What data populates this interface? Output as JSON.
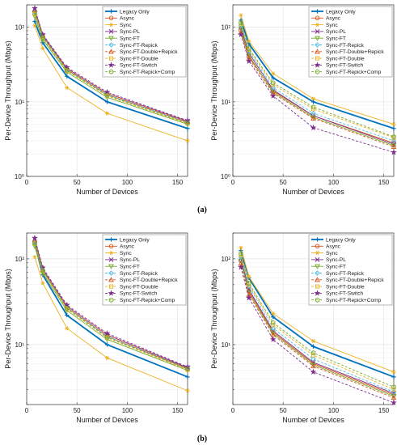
{
  "figure": {
    "captions": [
      "(a)",
      "(b)"
    ]
  },
  "series_styles": [
    {
      "name": "Legacy Only",
      "color": "#0072BD",
      "marker": "plus",
      "dash": "",
      "width": 1.8
    },
    {
      "name": "Async",
      "color": "#D95319",
      "marker": "circle",
      "dash": "",
      "width": 0.9
    },
    {
      "name": "Sync",
      "color": "#EDB120",
      "marker": "star6",
      "dash": "",
      "width": 0.9
    },
    {
      "name": "Sync-PL",
      "color": "#7E2F8E",
      "marker": "x",
      "dash": "",
      "width": 0.9
    },
    {
      "name": "Sync-FT",
      "color": "#77AC30",
      "marker": "tri-down",
      "dash": "",
      "width": 0.9
    },
    {
      "name": "Sync-FT-Repick",
      "color": "#4DBEEE",
      "marker": "diamond",
      "dash": "3,2",
      "width": 0.9
    },
    {
      "name": "Sync-FT-Double+Repick",
      "color": "#D95319",
      "marker": "tri-up",
      "dash": "3,2",
      "width": 0.9
    },
    {
      "name": "Sync-FT-Double",
      "color": "#EDB120",
      "marker": "square",
      "dash": "3,2",
      "width": 0.9
    },
    {
      "name": "Sync-FT-Switch",
      "color": "#7E2F8E",
      "marker": "star5",
      "dash": "3,2",
      "width": 0.9
    },
    {
      "name": "Sync-FT-Repick+Comp",
      "color": "#77AC30",
      "marker": "circle-hex",
      "dash": "3,2",
      "width": 0.9
    }
  ],
  "chart_data": [
    {
      "type": "line",
      "panel": "a-left",
      "xlabel": "Number of Devices",
      "ylabel": "Per-Device Throughput (Mbps)",
      "xlim": [
        0,
        160
      ],
      "ylim": [
        1,
        200
      ],
      "yscale": "log",
      "xticks": [
        0,
        50,
        100,
        150
      ],
      "yticks": [
        {
          "v": 1,
          "t": "10⁰"
        },
        {
          "v": 10,
          "t": "10¹"
        },
        {
          "v": 100,
          "t": "10²"
        }
      ],
      "grid": true,
      "legend_position": "top-right",
      "x": [
        8,
        16,
        40,
        80,
        160
      ],
      "series": [
        {
          "name": "Legacy Only",
          "values": [
            120,
            62,
            22,
            10,
            4.4
          ]
        },
        {
          "name": "Async",
          "values": [
            165,
            76,
            27,
            12.5,
            5.3
          ]
        },
        {
          "name": "Sync",
          "values": [
            105,
            52,
            15.5,
            7,
            3
          ]
        },
        {
          "name": "Sync-PL",
          "values": [
            175,
            78,
            28,
            13,
            5.5
          ]
        },
        {
          "name": "Sync-FT",
          "values": [
            140,
            68,
            25,
            11.5,
            5
          ]
        },
        {
          "name": "Sync-FT-Repick",
          "values": [
            160,
            75,
            27,
            12.5,
            5.3
          ]
        },
        {
          "name": "Sync-FT-Double+Repick",
          "values": [
            170,
            77,
            28,
            13,
            5.4
          ]
        },
        {
          "name": "Sync-FT-Double",
          "values": [
            150,
            72,
            26,
            12,
            5.1
          ]
        },
        {
          "name": "Sync-FT-Switch",
          "values": [
            180,
            80,
            29,
            13.5,
            5.6
          ]
        },
        {
          "name": "Sync-FT-Repick+Comp",
          "values": [
            155,
            73,
            26.5,
            12.2,
            5.2
          ]
        }
      ]
    },
    {
      "type": "line",
      "panel": "a-right",
      "xlabel": "Number of Devices",
      "ylabel": "Per-Device Throughput (Mbps)",
      "xlim": [
        0,
        160
      ],
      "ylim": [
        1,
        200
      ],
      "yscale": "log",
      "xticks": [
        0,
        50,
        100,
        150
      ],
      "yticks": [
        {
          "v": 1,
          "t": "10⁰"
        },
        {
          "v": 10,
          "t": "10¹"
        },
        {
          "v": 100,
          "t": "10²"
        }
      ],
      "grid": true,
      "legend_position": "top-right",
      "x": [
        8,
        16,
        40,
        80,
        160
      ],
      "series": [
        {
          "name": "Legacy Only",
          "values": [
            125,
            60,
            21,
            10,
            4.4
          ]
        },
        {
          "name": "Async",
          "values": [
            90,
            40,
            14,
            6.5,
            2.8
          ]
        },
        {
          "name": "Sync",
          "values": [
            145,
            65,
            24,
            11,
            5
          ]
        },
        {
          "name": "Sync-PL",
          "values": [
            100,
            45,
            14.5,
            6.5,
            2.7
          ]
        },
        {
          "name": "Sync-FT",
          "values": [
            95,
            42,
            13.5,
            6.2,
            2.6
          ]
        },
        {
          "name": "Sync-FT-Repick",
          "values": [
            105,
            48,
            15.5,
            7,
            3
          ]
        },
        {
          "name": "Sync-FT-Double+Repick",
          "values": [
            85,
            38,
            13,
            6,
            2.5
          ]
        },
        {
          "name": "Sync-FT-Double",
          "values": [
            110,
            50,
            17,
            8,
            3.3
          ]
        },
        {
          "name": "Sync-FT-Switch",
          "values": [
            80,
            35,
            12,
            4.5,
            2.1
          ]
        },
        {
          "name": "Sync-FT-Repick+Comp",
          "values": [
            115,
            52,
            18,
            8.5,
            3.4
          ]
        }
      ]
    },
    {
      "type": "line",
      "panel": "b-left",
      "xlabel": "Number of Devices",
      "ylabel": "Per-Device Throughput (Mbps)",
      "xlim": [
        0,
        160
      ],
      "ylim": [
        2,
        200
      ],
      "yscale": "log",
      "xticks": [
        0,
        50,
        100,
        150
      ],
      "yticks": [
        {
          "v": 10,
          "t": "10¹"
        },
        {
          "v": 100,
          "t": "10²"
        }
      ],
      "grid": true,
      "legend_position": "top-right",
      "x": [
        8,
        16,
        40,
        80,
        160
      ],
      "series": [
        {
          "name": "Legacy Only",
          "values": [
            150,
            65,
            22,
            10,
            4.2
          ]
        },
        {
          "name": "Async",
          "values": [
            160,
            72,
            27,
            12.5,
            5.2
          ]
        },
        {
          "name": "Sync",
          "values": [
            105,
            52,
            15.5,
            7,
            2.9
          ]
        },
        {
          "name": "Sync-PL",
          "values": [
            170,
            76,
            28,
            13,
            5.4
          ]
        },
        {
          "name": "Sync-FT",
          "values": [
            140,
            68,
            25,
            11.5,
            5
          ]
        },
        {
          "name": "Sync-FT-Repick",
          "values": [
            155,
            74,
            27,
            12.5,
            5.3
          ]
        },
        {
          "name": "Sync-FT-Double+Repick",
          "values": [
            165,
            75,
            28,
            13,
            5.3
          ]
        },
        {
          "name": "Sync-FT-Double",
          "values": [
            150,
            72,
            26,
            12,
            5.1
          ]
        },
        {
          "name": "Sync-FT-Switch",
          "values": [
            175,
            79,
            29,
            13.5,
            5.5
          ]
        },
        {
          "name": "Sync-FT-Repick+Comp",
          "values": [
            152,
            73,
            26.5,
            12.2,
            5.2
          ]
        }
      ]
    },
    {
      "type": "line",
      "panel": "b-right",
      "xlabel": "Number of Devices",
      "ylabel": "Per-Device Throughput (Mbps)",
      "xlim": [
        0,
        160
      ],
      "ylim": [
        2,
        200
      ],
      "yscale": "log",
      "xticks": [
        0,
        50,
        100,
        150
      ],
      "yticks": [
        {
          "v": 10,
          "t": "10¹"
        },
        {
          "v": 100,
          "t": "10²"
        }
      ],
      "grid": true,
      "legend_position": "top-right",
      "x": [
        8,
        16,
        40,
        80,
        160
      ],
      "series": [
        {
          "name": "Legacy Only",
          "values": [
            125,
            60,
            21,
            9.5,
            4.2
          ]
        },
        {
          "name": "Async",
          "values": [
            95,
            42,
            14,
            6,
            2.6
          ]
        },
        {
          "name": "Sync",
          "values": [
            135,
            62,
            23,
            11,
            4.8
          ]
        },
        {
          "name": "Sync-PL",
          "values": [
            100,
            44,
            14.5,
            6.2,
            2.7
          ]
        },
        {
          "name": "Sync-FT",
          "values": [
            95,
            40,
            13.5,
            5.8,
            2.5
          ]
        },
        {
          "name": "Sync-FT-Repick",
          "values": [
            105,
            48,
            15.5,
            6.8,
            2.8
          ]
        },
        {
          "name": "Sync-FT-Double+Repick",
          "values": [
            88,
            38,
            13,
            5.6,
            2.4
          ]
        },
        {
          "name": "Sync-FT-Double",
          "values": [
            110,
            50,
            17,
            7.5,
            3
          ]
        },
        {
          "name": "Sync-FT-Switch",
          "values": [
            80,
            35,
            11.5,
            4.8,
            2.1
          ]
        },
        {
          "name": "Sync-FT-Repick+Comp",
          "values": [
            115,
            52,
            18,
            8,
            3.2
          ]
        }
      ]
    }
  ]
}
